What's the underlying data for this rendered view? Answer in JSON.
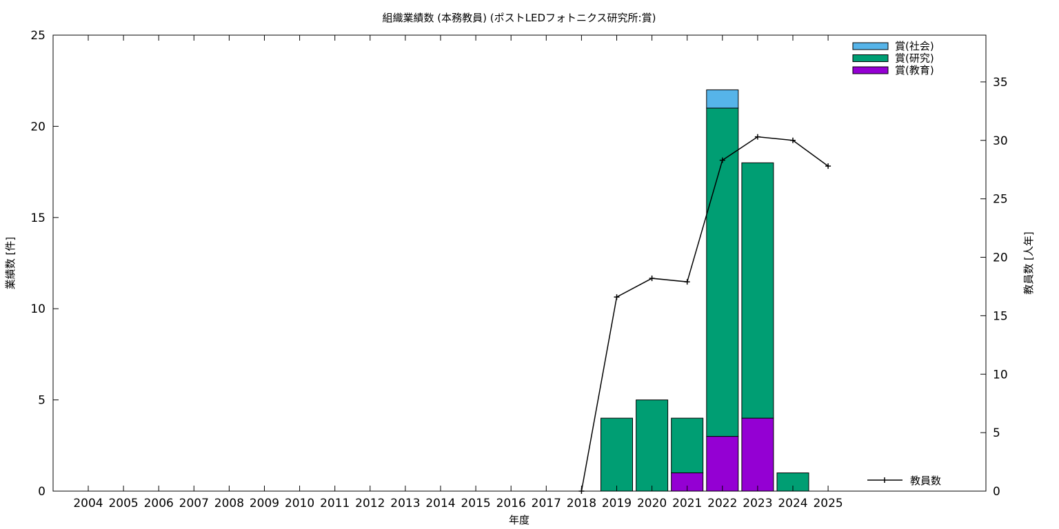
{
  "chart_data": {
    "type": "bar",
    "title": "組織業績数 (本務教員) (ポストLEDフォトニクス研究所:賞)",
    "xlabel": "年度",
    "ylabel": "業績数 [件]",
    "y2label": "教員数 [人年]",
    "categories": [
      "2004",
      "2005",
      "2006",
      "2007",
      "2008",
      "2009",
      "2010",
      "2011",
      "2012",
      "2013",
      "2014",
      "2015",
      "2016",
      "2017",
      "2018",
      "2019",
      "2020",
      "2021",
      "2022",
      "2023",
      "2024",
      "2025"
    ],
    "stacked": true,
    "series": [
      {
        "name": "賞(教育)",
        "color": "#9400d3",
        "values": [
          0,
          0,
          0,
          0,
          0,
          0,
          0,
          0,
          0,
          0,
          0,
          0,
          0,
          0,
          0,
          0,
          0,
          1,
          3,
          4,
          0,
          0
        ]
      },
      {
        "name": "賞(研究)",
        "color": "#009e73",
        "values": [
          0,
          0,
          0,
          0,
          0,
          0,
          0,
          0,
          0,
          0,
          0,
          0,
          0,
          0,
          0,
          4,
          5,
          3,
          18,
          14,
          1,
          0
        ]
      },
      {
        "name": "賞(社会)",
        "color": "#56b4e9",
        "values": [
          0,
          0,
          0,
          0,
          0,
          0,
          0,
          0,
          0,
          0,
          0,
          0,
          0,
          0,
          0,
          0,
          0,
          0,
          1,
          0,
          0,
          0
        ]
      }
    ],
    "line_series": {
      "name": "教員数",
      "color": "#000000",
      "x": [
        "2018",
        "2019",
        "2020",
        "2021",
        "2022",
        "2023",
        "2024",
        "2025"
      ],
      "values": [
        0,
        16.6,
        18.2,
        17.9,
        28.3,
        30.3,
        30.0,
        27.8
      ]
    },
    "ylim": [
      0,
      25
    ],
    "yticks": [
      0,
      5,
      10,
      15,
      20,
      25
    ],
    "y2lim": [
      0,
      39
    ],
    "y2ticks": [
      0,
      5,
      10,
      15,
      20,
      25,
      30,
      35
    ],
    "grid": false,
    "legend_position": "top-right",
    "line_legend_position": "bottom-right"
  }
}
